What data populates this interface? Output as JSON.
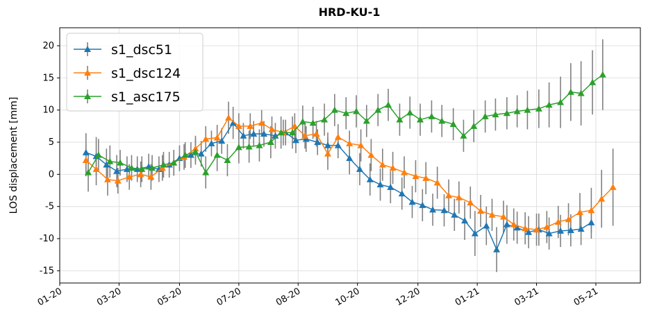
{
  "chart_data": {
    "type": "errorbar-line",
    "title": "HRD-KU-1",
    "y_label": "LOS displacement [mm]",
    "xlim": [
      0,
      509
    ],
    "ylim": [
      -16.9,
      22.8
    ],
    "xticks": [
      {
        "value": 0,
        "label": "01-20"
      },
      {
        "value": 52,
        "label": "03-20"
      },
      {
        "value": 105,
        "label": "05-20"
      },
      {
        "value": 157,
        "label": "07-20"
      },
      {
        "value": 209,
        "label": "08-20"
      },
      {
        "value": 261,
        "label": "10-20"
      },
      {
        "value": 314,
        "label": "12-20"
      },
      {
        "value": 366,
        "label": "01-21"
      },
      {
        "value": 418,
        "label": "03-21"
      },
      {
        "value": 470,
        "label": "05-21"
      }
    ],
    "yticks": [
      -15,
      -10,
      -5,
      0,
      5,
      10,
      15,
      20
    ],
    "grid": true,
    "legend": "upper left",
    "error_color": "#808080",
    "series": [
      {
        "name": "s1_dsc51",
        "color": "#1f77b4",
        "x": [
          23,
          32,
          41,
          50,
          59,
          68,
          78,
          87,
          96,
          105,
          115,
          124,
          133,
          142,
          152,
          161,
          170,
          179,
          189,
          198,
          207,
          216,
          226,
          235,
          244,
          254,
          263,
          272,
          281,
          290,
          300,
          309,
          318,
          327,
          337,
          346,
          355,
          364,
          374,
          383,
          392,
          401,
          411,
          420,
          429,
          439,
          448,
          457,
          466
        ],
        "values": [
          3.4,
          2.8,
          1.5,
          0.5,
          0.8,
          0.8,
          1.2,
          0.8,
          1.5,
          2.5,
          3.0,
          3.2,
          4.8,
          5.2,
          8.0,
          6.0,
          6.3,
          6.3,
          6.0,
          6.5,
          5.3,
          5.5,
          5.0,
          4.5,
          4.5,
          2.5,
          0.8,
          -0.8,
          -1.6,
          -2.0,
          -3.0,
          -4.3,
          -4.8,
          -5.5,
          -5.6,
          -6.3,
          -7.2,
          -9.2,
          -8.0,
          -11.7,
          -7.8,
          -8.3,
          -9.0,
          -8.6,
          -9.2,
          -8.8,
          -8.7,
          -8.5,
          -7.5
        ],
        "errors": [
          3,
          3,
          2.5,
          2.5,
          2,
          2,
          2,
          2,
          2,
          2,
          2,
          2,
          2,
          2,
          2.5,
          2,
          2,
          2,
          2,
          2,
          2,
          2,
          2,
          2,
          2,
          2.5,
          2.5,
          2.5,
          2.5,
          2.5,
          2.5,
          2.5,
          2.5,
          2.5,
          2.5,
          2.5,
          3,
          3.5,
          3,
          3.5,
          3,
          2.5,
          2.5,
          2.5,
          2.5,
          2.5,
          2.5,
          2.5,
          2.5
        ]
      },
      {
        "name": "s1_dsc124",
        "color": "#ff7f0e",
        "x": [
          23,
          32,
          42,
          51,
          61,
          71,
          80,
          90,
          100,
          109,
          119,
          128,
          138,
          148,
          157,
          167,
          177,
          186,
          196,
          206,
          215,
          225,
          235,
          244,
          254,
          264,
          273,
          283,
          292,
          302,
          312,
          321,
          331,
          341,
          350,
          360,
          369,
          379,
          389,
          398,
          408,
          418,
          427,
          437,
          446,
          456,
          466,
          475,
          485
        ],
        "values": [
          2.2,
          0.8,
          -0.8,
          -1.0,
          -0.4,
          0,
          -0.4,
          1.0,
          1.8,
          2.7,
          4.0,
          5.5,
          5.7,
          8.8,
          7.5,
          7.5,
          8.0,
          7.0,
          6.5,
          7.5,
          6.0,
          6.3,
          3.2,
          5.8,
          4.8,
          4.5,
          3.0,
          1.5,
          1.0,
          0.3,
          -0.3,
          -0.6,
          -1.3,
          -3.3,
          -3.6,
          -4.4,
          -5.7,
          -6.3,
          -6.6,
          -7.8,
          -8.4,
          -8.6,
          -8.2,
          -7.4,
          -7.0,
          -5.9,
          -5.6,
          -3.8,
          -2.0
        ],
        "errors": [
          2.5,
          2.5,
          2.5,
          2,
          2,
          2,
          2,
          2,
          2,
          2,
          2,
          2,
          2,
          2.5,
          2,
          2,
          2,
          2,
          2,
          2,
          2,
          2,
          2.5,
          2,
          2,
          2.5,
          2.5,
          2.5,
          2.5,
          2.5,
          2.5,
          2.5,
          2.5,
          2.5,
          2.5,
          2.5,
          2.5,
          2.5,
          2.5,
          2.5,
          2.5,
          2.5,
          2.5,
          2.5,
          2.5,
          3,
          3.5,
          4.5,
          6
        ]
      },
      {
        "name": "s1_asc175",
        "color": "#2ca02c",
        "x": [
          25,
          34,
          44,
          53,
          63,
          72,
          81,
          91,
          100,
          110,
          119,
          128,
          138,
          147,
          157,
          166,
          175,
          185,
          194,
          204,
          213,
          222,
          232,
          241,
          251,
          260,
          269,
          279,
          288,
          298,
          307,
          316,
          326,
          335,
          345,
          354,
          363,
          373,
          382,
          392,
          401,
          410,
          420,
          429,
          439,
          448,
          457,
          467,
          476
        ],
        "values": [
          0.3,
          3.0,
          2.0,
          1.8,
          1.0,
          0.8,
          1.0,
          1.5,
          1.8,
          3.0,
          3.5,
          0.3,
          3.0,
          2.2,
          4.2,
          4.3,
          4.5,
          5.0,
          6.5,
          6.5,
          8.2,
          8.0,
          8.5,
          10.0,
          9.5,
          9.8,
          8.3,
          10.0,
          10.8,
          8.5,
          9.6,
          8.5,
          9.0,
          8.3,
          7.8,
          6.0,
          7.5,
          9.0,
          9.3,
          9.5,
          9.8,
          10.0,
          10.2,
          10.8,
          11.2,
          12.8,
          12.6,
          14.3,
          15.5
        ],
        "errors": [
          3,
          2.5,
          2.5,
          2,
          2,
          2,
          2,
          2,
          2,
          2,
          2,
          2.5,
          2.5,
          2.5,
          2.5,
          2.5,
          2.5,
          2.5,
          2.5,
          2.5,
          2.5,
          2.5,
          2.5,
          2.5,
          2.5,
          2.5,
          2.5,
          2.5,
          2.5,
          2.5,
          2.5,
          2.5,
          2.5,
          2.5,
          2.5,
          2.5,
          2.5,
          2.5,
          2.5,
          2.5,
          2.5,
          3,
          3,
          3.5,
          4,
          4.5,
          5,
          5,
          5.5
        ]
      }
    ]
  }
}
